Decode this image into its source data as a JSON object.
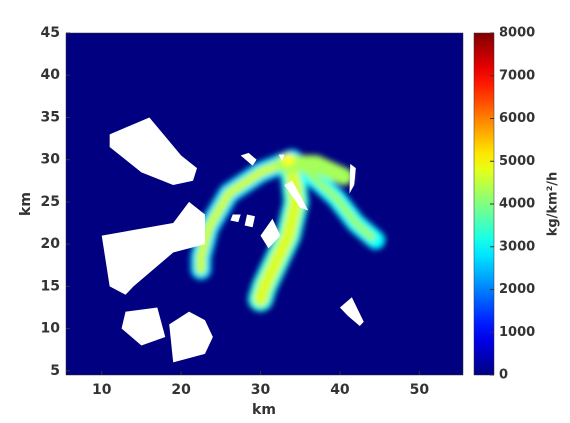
{
  "chart_data": {
    "type": "heatmap",
    "xlabel": "km",
    "ylabel": "km",
    "xlim": [
      5.5,
      55.5
    ],
    "ylim": [
      4.5,
      45
    ],
    "xticks": [
      10,
      20,
      30,
      40,
      50
    ],
    "yticks": [
      5,
      10,
      15,
      20,
      25,
      30,
      35,
      40,
      45
    ],
    "colormap": "jet",
    "clim": [
      0,
      8000
    ],
    "cticks": [
      0,
      1000,
      2000,
      3000,
      4000,
      5000,
      6000,
      7000,
      8000
    ],
    "colorbar_label": "kg/km²/h",
    "background_value": 0,
    "plume": [
      {
        "x": [
          34,
          30,
          26,
          23.5,
          22.5,
          22.5
        ],
        "y": [
          30,
          28.5,
          26,
          22,
          18.5,
          17
        ],
        "width": 2.6,
        "value": 2800
      },
      {
        "x": [
          34,
          30,
          26,
          23.5,
          22.5,
          22.5
        ],
        "y": [
          30,
          28.5,
          26,
          22,
          18.5,
          17
        ],
        "width": 1.2,
        "value": 4600
      },
      {
        "x": [
          34,
          34.5,
          33.5,
          32,
          30.5,
          30
        ],
        "y": [
          29,
          25,
          21,
          18,
          15,
          13.5
        ],
        "width": 3.2,
        "value": 3200
      },
      {
        "x": [
          34,
          34.5,
          33.5,
          32,
          30.5,
          30
        ],
        "y": [
          29,
          25,
          21,
          18,
          15,
          13.5
        ],
        "width": 1.8,
        "value": 4700
      },
      {
        "x": [
          36,
          39.5,
          42,
          44.5
        ],
        "y": [
          28.5,
          25.5,
          22.5,
          20.5
        ],
        "width": 2.4,
        "value": 3000
      },
      {
        "x": [
          36,
          39.5,
          42,
          44
        ],
        "y": [
          28.5,
          25.5,
          22.5,
          20.8
        ],
        "width": 1.0,
        "value": 4200
      },
      {
        "x": [
          33,
          37,
          40.5
        ],
        "y": [
          29.5,
          29.5,
          28
        ],
        "width": 2.2,
        "value": 4300
      },
      {
        "x": [
          33.5
        ],
        "y": [
          30
        ],
        "width": 1.6,
        "value": 5000
      }
    ],
    "obstacles": [
      {
        "x": [
          11,
          16,
          20,
          22,
          21.5,
          19,
          15,
          11
        ],
        "y": [
          33,
          35,
          30.5,
          29,
          27.5,
          27,
          28.5,
          31.5
        ]
      },
      {
        "x": [
          10,
          19,
          21,
          23,
          23,
          19,
          14,
          13,
          11
        ],
        "y": [
          21,
          22.5,
          25,
          23.5,
          20,
          19,
          15,
          14,
          15
        ]
      },
      {
        "x": [
          13,
          17,
          18,
          15,
          12.5
        ],
        "y": [
          12,
          12.5,
          9,
          8,
          10
        ]
      },
      {
        "x": [
          18.5,
          21,
          23,
          24,
          23,
          19
        ],
        "y": [
          10.5,
          12,
          11,
          9,
          7,
          6
        ]
      },
      {
        "x": [
          40,
          41.5,
          43,
          42.5,
          41
        ],
        "y": [
          12.5,
          13.7,
          10.8,
          10.3,
          11.5
        ]
      },
      {
        "x": [
          27.5,
          28.5,
          29.5,
          29
        ],
        "y": [
          30.5,
          30.8,
          30,
          29.3
        ]
      },
      {
        "x": [
          32.3,
          33,
          32.7
        ],
        "y": [
          30.6,
          30.6,
          29.8
        ]
      },
      {
        "x": [
          41.3,
          42,
          41.8,
          41.2
        ],
        "y": [
          29.5,
          29,
          27,
          26
        ]
      },
      {
        "x": [
          33,
          34,
          36,
          35
        ],
        "y": [
          27,
          27.5,
          24,
          24.3
        ]
      },
      {
        "x": [
          30,
          31.5,
          32.5,
          31
        ],
        "y": [
          21,
          23,
          21,
          19.5
        ]
      },
      {
        "x": [
          26.5,
          27.5,
          27.2,
          26.2
        ],
        "y": [
          23.5,
          23.5,
          22.6,
          22.8
        ]
      },
      {
        "x": [
          28.3,
          29.3,
          29,
          28
        ],
        "y": [
          23.5,
          23.3,
          22,
          22.2
        ]
      }
    ]
  }
}
